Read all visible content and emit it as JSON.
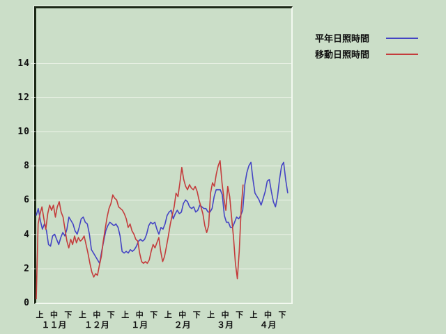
{
  "window": {
    "background_color": "#cbdec8"
  },
  "chart_data": {
    "type": "line",
    "title": "",
    "xlabel": "",
    "ylabel": "",
    "ylim": [
      0,
      17.2
    ],
    "yticks": [
      0,
      2,
      4,
      6,
      8,
      10,
      12,
      14
    ],
    "x_months": [
      "１１月",
      "１２月",
      "１月",
      "２月",
      "３月",
      "４月"
    ],
    "x_periods": [
      "上",
      "中",
      "下"
    ],
    "grid": "horizontal",
    "legend_position": "top-right-outside",
    "colors": {
      "grid": "#eef4ea",
      "axis_dark": "#1c2816",
      "axis_light": "#f3f9f0",
      "text": "#111111"
    },
    "series": [
      {
        "name": "平年日照時間",
        "color": "#4444c4",
        "start_frac": 0.0,
        "end_frac": 0.986,
        "values": [
          5.1,
          5.5,
          4.8,
          4.3,
          4.6,
          4.2,
          3.4,
          3.3,
          3.9,
          4.0,
          3.7,
          3.4,
          3.8,
          4.1,
          3.9,
          4.3,
          5.0,
          4.8,
          4.6,
          4.2,
          4.0,
          4.4,
          4.9,
          5.0,
          4.7,
          4.6,
          4.0,
          3.1,
          2.9,
          2.7,
          2.5,
          2.3,
          3.0,
          3.6,
          4.2,
          4.5,
          4.7,
          4.6,
          4.5,
          4.6,
          4.4,
          3.9,
          3.0,
          2.9,
          3.0,
          2.9,
          3.1,
          3.0,
          3.1,
          3.3,
          3.6,
          3.7,
          3.6,
          3.7,
          4.0,
          4.5,
          4.7,
          4.6,
          4.7,
          4.3,
          4.0,
          4.4,
          4.3,
          4.6,
          5.1,
          5.3,
          5.4,
          4.9,
          5.2,
          5.4,
          5.2,
          5.3,
          5.8,
          6.0,
          5.9,
          5.6,
          5.5,
          5.6,
          5.3,
          5.4,
          5.7,
          5.6,
          5.5,
          5.5,
          5.3,
          5.3,
          5.5,
          6.2,
          6.6,
          6.6,
          6.6,
          6.3,
          5.1,
          4.7,
          4.7,
          4.4,
          4.4,
          4.7,
          5.0,
          4.9,
          5.1,
          5.4,
          6.9,
          7.6,
          8.0,
          8.2,
          7.2,
          6.4,
          6.2,
          6.0,
          5.7,
          6.1,
          6.5,
          7.1,
          7.2,
          6.5,
          5.9,
          5.6,
          6.2,
          7.2,
          8.0,
          8.2,
          7.2,
          6.4
        ]
      },
      {
        "name": "移動日照時間",
        "color": "#c43c3c",
        "start_frac": 0.0,
        "end_frac": 0.811,
        "values": [
          0.2,
          4.6,
          5.2,
          5.6,
          4.9,
          4.3,
          5.2,
          5.7,
          5.4,
          5.7,
          5.0,
          5.6,
          5.9,
          5.3,
          5.0,
          4.3,
          3.6,
          3.2,
          3.7,
          3.4,
          3.9,
          3.5,
          3.8,
          3.6,
          3.7,
          3.9,
          3.4,
          2.9,
          2.3,
          1.8,
          1.5,
          1.7,
          1.6,
          2.2,
          2.7,
          3.6,
          4.3,
          5.0,
          5.5,
          5.8,
          6.3,
          6.1,
          6.0,
          5.6,
          5.5,
          5.4,
          5.2,
          4.9,
          4.4,
          4.6,
          4.2,
          4.0,
          3.7,
          3.6,
          2.9,
          2.4,
          2.3,
          2.4,
          2.3,
          2.5,
          3.0,
          3.4,
          3.2,
          3.5,
          3.8,
          3.0,
          2.4,
          2.7,
          3.3,
          3.9,
          4.6,
          5.1,
          5.6,
          6.4,
          6.2,
          7.0,
          7.9,
          7.2,
          6.8,
          6.6,
          6.9,
          6.7,
          6.6,
          6.8,
          6.5,
          6.0,
          5.6,
          5.2,
          4.5,
          4.1,
          4.5,
          6.4,
          7.0,
          6.8,
          7.5,
          8.0,
          8.3,
          7.0,
          6.1,
          5.4,
          6.8,
          6.2,
          5.0,
          3.8,
          2.3,
          1.4,
          3.0,
          5.5,
          6.9
        ]
      }
    ]
  }
}
